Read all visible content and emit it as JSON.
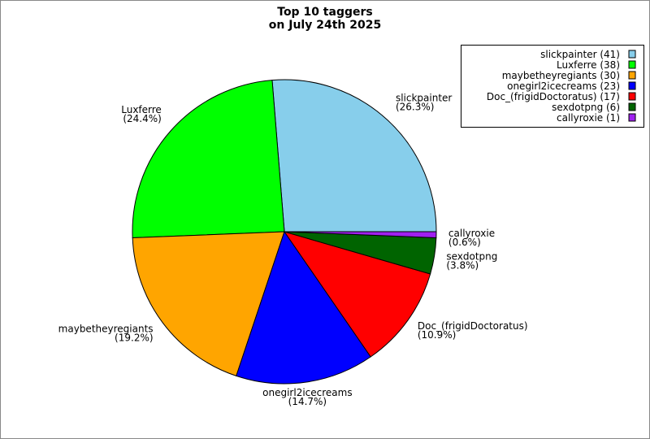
{
  "chart_data": {
    "type": "pie",
    "title_lines": [
      "Top 10 taggers",
      "on July 24th 2025"
    ],
    "categories": [
      "slickpainter",
      "Luxferre",
      "maybetheyregiants",
      "onegirl2icecreams",
      "Doc_(frigidDoctoratus)",
      "sexdotpng",
      "callyroxie"
    ],
    "values": [
      41,
      38,
      30,
      23,
      17,
      6,
      1
    ],
    "value_labels": [
      "(26.3%)",
      "(24.4%)",
      "(19.2%)",
      "(14.7%)",
      "(10.9%)",
      "(3.8%)",
      "(0.6%)"
    ],
    "legend_labels": [
      "slickpainter (41)",
      "Luxferre (38)",
      "maybetheyregiants (30)",
      "onegirl2icecreams (23)",
      "Doc_(frigidDoctoratus) (17)",
      "sexdotpng (6)",
      "callyroxie (1)"
    ],
    "colors": [
      "#87ceeb",
      "#00ff00",
      "#ffa500",
      "#0000ff",
      "#ff0000",
      "#006400",
      "#a020f0"
    ],
    "legend": "upper right"
  }
}
